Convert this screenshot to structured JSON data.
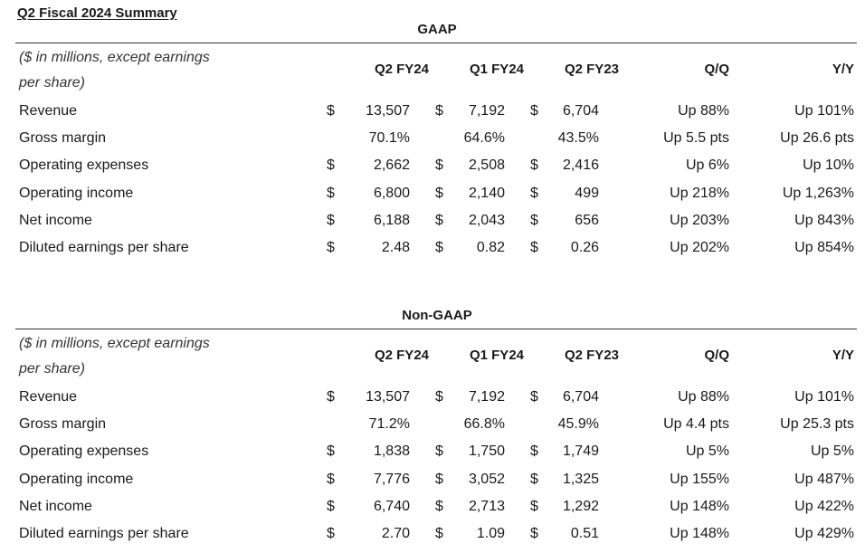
{
  "title": "Q2 Fiscal 2024 Summary",
  "columns": [
    "Q2 FY24",
    "Q1 FY24",
    "Q2 FY23",
    "Q/Q",
    "Y/Y"
  ],
  "caption_line1": "($ in millions, except earnings",
  "caption_line2": "per share)",
  "sections": [
    {
      "heading": "GAAP",
      "rows": [
        {
          "label": "Revenue",
          "d": [
            "$",
            "$",
            "$"
          ],
          "v": [
            "13,507",
            "7,192",
            "6,704"
          ],
          "qq": "Up 88%",
          "yy": "Up 101%"
        },
        {
          "label": "Gross margin",
          "d": [
            "",
            "",
            ""
          ],
          "v": [
            "70.1%",
            "64.6%",
            "43.5%"
          ],
          "qq": "Up 5.5 pts",
          "yy": "Up 26.6 pts"
        },
        {
          "label": "Operating expenses",
          "d": [
            "$",
            "$",
            "$"
          ],
          "v": [
            "2,662",
            "2,508",
            "2,416"
          ],
          "qq": "Up 6%",
          "yy": "Up 10%"
        },
        {
          "label": "Operating income",
          "d": [
            "$",
            "$",
            "$"
          ],
          "v": [
            "6,800",
            "2,140",
            "499"
          ],
          "qq": "Up 218%",
          "yy": "Up 1,263%"
        },
        {
          "label": "Net income",
          "d": [
            "$",
            "$",
            "$"
          ],
          "v": [
            "6,188",
            "2,043",
            "656"
          ],
          "qq": "Up 203%",
          "yy": "Up 843%"
        },
        {
          "label": "Diluted earnings per share",
          "d": [
            "$",
            "$",
            "$"
          ],
          "v": [
            "2.48",
            "0.82",
            "0.26"
          ],
          "qq": "Up 202%",
          "yy": "Up 854%"
        }
      ]
    },
    {
      "heading": "Non-GAAP",
      "rows": [
        {
          "label": "Revenue",
          "d": [
            "$",
            "$",
            "$"
          ],
          "v": [
            "13,507",
            "7,192",
            "6,704"
          ],
          "qq": "Up 88%",
          "yy": "Up 101%"
        },
        {
          "label": "Gross margin",
          "d": [
            "",
            "",
            ""
          ],
          "v": [
            "71.2%",
            "66.8%",
            "45.9%"
          ],
          "qq": "Up 4.4 pts",
          "yy": "Up 25.3 pts"
        },
        {
          "label": "Operating expenses",
          "d": [
            "$",
            "$",
            "$"
          ],
          "v": [
            "1,838",
            "1,750",
            "1,749"
          ],
          "qq": "Up 5%",
          "yy": "Up 5%"
        },
        {
          "label": "Operating income",
          "d": [
            "$",
            "$",
            "$"
          ],
          "v": [
            "7,776",
            "3,052",
            "1,325"
          ],
          "qq": "Up 155%",
          "yy": "Up 487%"
        },
        {
          "label": "Net income",
          "d": [
            "$",
            "$",
            "$"
          ],
          "v": [
            "6,740",
            "2,713",
            "1,292"
          ],
          "qq": "Up 148%",
          "yy": "Up 422%"
        },
        {
          "label": "Diluted earnings per share",
          "d": [
            "$",
            "$",
            "$"
          ],
          "v": [
            "2.70",
            "1.09",
            "0.51"
          ],
          "qq": "Up 148%",
          "yy": "Up 429%"
        }
      ]
    }
  ]
}
